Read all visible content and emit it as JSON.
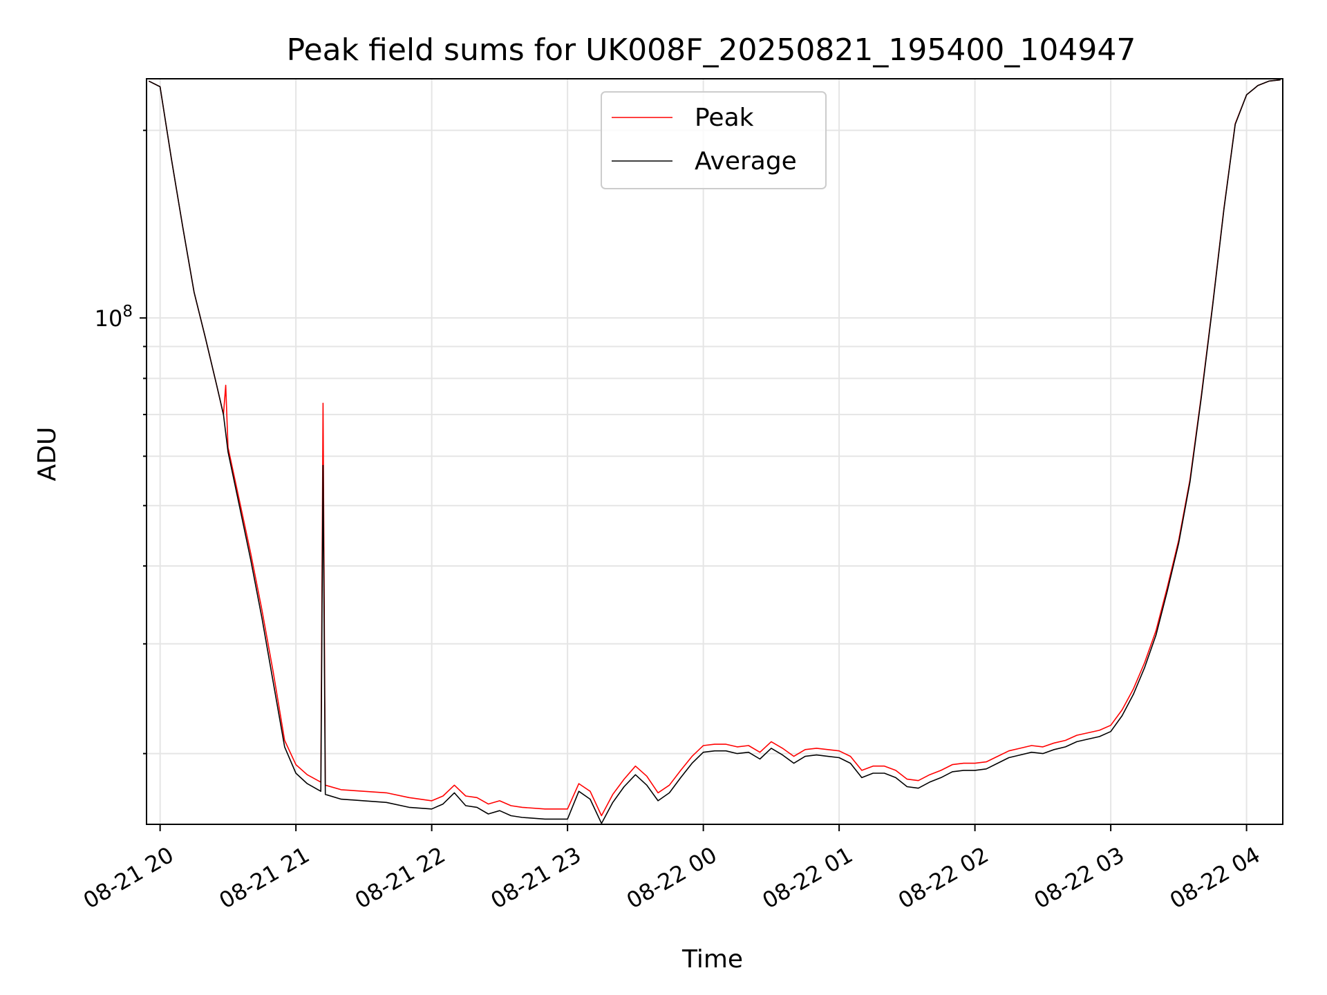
{
  "chart_data": {
    "type": "line",
    "title": "Peak field sums for UK008F_20250821_195400_104947",
    "xlabel": "Time",
    "ylabel": "ADU",
    "yscale": "log",
    "ylim": [
      15400000,
      242000000
    ],
    "xlim": [
      "2025-08-21 19:54",
      "2025-08-22 04:16"
    ],
    "x_ticks": [
      "08-21 20",
      "08-21 21",
      "08-21 22",
      "08-21 23",
      "08-22 00",
      "08-22 01",
      "08-22 02",
      "08-22 03",
      "08-22 04"
    ],
    "y_ticks": [
      {
        "value": 100000000,
        "base": "10",
        "exp": "8"
      }
    ],
    "grid": true,
    "legend_position": "upper center",
    "series": [
      {
        "name": "Peak",
        "color": "#ff0000",
        "points": [
          [
            "2025-08-21 19:55",
            240000000
          ],
          [
            "2025-08-21 20:00",
            235000000
          ],
          [
            "2025-08-21 20:05",
            180000000
          ],
          [
            "2025-08-21 20:10",
            140000000
          ],
          [
            "2025-08-21 20:15",
            110000000
          ],
          [
            "2025-08-21 20:20",
            93000000
          ],
          [
            "2025-08-21 20:25",
            78000000
          ],
          [
            "2025-08-21 20:28",
            70000000
          ],
          [
            "2025-08-21 20:29",
            78000000
          ],
          [
            "2025-08-21 20:30",
            62000000
          ],
          [
            "2025-08-21 20:35",
            51000000
          ],
          [
            "2025-08-21 20:40",
            42000000
          ],
          [
            "2025-08-21 20:45",
            34000000
          ],
          [
            "2025-08-21 20:50",
            27000000
          ],
          [
            "2025-08-21 20:55",
            21000000
          ],
          [
            "2025-08-21 21:00",
            19200000
          ],
          [
            "2025-08-21 21:05",
            18500000
          ],
          [
            "2025-08-21 21:11",
            18000000
          ],
          [
            "2025-08-21 21:12",
            73000000
          ],
          [
            "2025-08-21 21:13",
            17800000
          ],
          [
            "2025-08-21 21:20",
            17500000
          ],
          [
            "2025-08-21 21:30",
            17400000
          ],
          [
            "2025-08-21 21:40",
            17300000
          ],
          [
            "2025-08-21 21:50",
            17000000
          ],
          [
            "2025-08-21 22:00",
            16800000
          ],
          [
            "2025-08-21 22:05",
            17100000
          ],
          [
            "2025-08-21 22:10",
            17800000
          ],
          [
            "2025-08-21 22:15",
            17100000
          ],
          [
            "2025-08-21 22:20",
            17000000
          ],
          [
            "2025-08-21 22:25",
            16600000
          ],
          [
            "2025-08-21 22:30",
            16800000
          ],
          [
            "2025-08-21 22:35",
            16500000
          ],
          [
            "2025-08-21 22:40",
            16400000
          ],
          [
            "2025-08-21 22:50",
            16300000
          ],
          [
            "2025-08-21 23:00",
            16300000
          ],
          [
            "2025-08-21 23:05",
            17900000
          ],
          [
            "2025-08-21 23:10",
            17400000
          ],
          [
            "2025-08-21 23:15",
            15900000
          ],
          [
            "2025-08-21 23:20",
            17200000
          ],
          [
            "2025-08-21 23:25",
            18200000
          ],
          [
            "2025-08-21 23:30",
            19100000
          ],
          [
            "2025-08-21 23:35",
            18400000
          ],
          [
            "2025-08-21 23:40",
            17300000
          ],
          [
            "2025-08-21 23:45",
            17800000
          ],
          [
            "2025-08-21 23:50",
            18800000
          ],
          [
            "2025-08-21 23:55",
            19800000
          ],
          [
            "2025-08-22 00:00",
            20600000
          ],
          [
            "2025-08-22 00:05",
            20700000
          ],
          [
            "2025-08-22 00:10",
            20700000
          ],
          [
            "2025-08-22 00:15",
            20500000
          ],
          [
            "2025-08-22 00:20",
            20600000
          ],
          [
            "2025-08-22 00:25",
            20100000
          ],
          [
            "2025-08-22 00:30",
            20900000
          ],
          [
            "2025-08-22 00:35",
            20400000
          ],
          [
            "2025-08-22 00:40",
            19800000
          ],
          [
            "2025-08-22 00:45",
            20300000
          ],
          [
            "2025-08-22 00:50",
            20400000
          ],
          [
            "2025-08-22 00:55",
            20300000
          ],
          [
            "2025-08-22 01:00",
            20200000
          ],
          [
            "2025-08-22 01:05",
            19800000
          ],
          [
            "2025-08-22 01:10",
            18800000
          ],
          [
            "2025-08-22 01:15",
            19100000
          ],
          [
            "2025-08-22 01:20",
            19100000
          ],
          [
            "2025-08-22 01:25",
            18800000
          ],
          [
            "2025-08-22 01:30",
            18200000
          ],
          [
            "2025-08-22 01:35",
            18100000
          ],
          [
            "2025-08-22 01:40",
            18500000
          ],
          [
            "2025-08-22 01:45",
            18800000
          ],
          [
            "2025-08-22 01:50",
            19200000
          ],
          [
            "2025-08-22 01:55",
            19300000
          ],
          [
            "2025-08-22 02:00",
            19300000
          ],
          [
            "2025-08-22 02:05",
            19400000
          ],
          [
            "2025-08-22 02:10",
            19800000
          ],
          [
            "2025-08-22 02:15",
            20200000
          ],
          [
            "2025-08-22 02:20",
            20400000
          ],
          [
            "2025-08-22 02:25",
            20600000
          ],
          [
            "2025-08-22 02:30",
            20500000
          ],
          [
            "2025-08-22 02:35",
            20800000
          ],
          [
            "2025-08-22 02:40",
            21000000
          ],
          [
            "2025-08-22 02:45",
            21400000
          ],
          [
            "2025-08-22 02:50",
            21600000
          ],
          [
            "2025-08-22 02:55",
            21800000
          ],
          [
            "2025-08-22 03:00",
            22200000
          ],
          [
            "2025-08-22 03:05",
            23500000
          ],
          [
            "2025-08-22 03:10",
            25400000
          ],
          [
            "2025-08-22 03:15",
            28000000
          ],
          [
            "2025-08-22 03:20",
            31500000
          ],
          [
            "2025-08-22 03:25",
            37000000
          ],
          [
            "2025-08-22 03:30",
            44000000
          ],
          [
            "2025-08-22 03:35",
            55000000
          ],
          [
            "2025-08-22 03:40",
            75000000
          ],
          [
            "2025-08-22 03:45",
            105000000
          ],
          [
            "2025-08-22 03:50",
            150000000
          ],
          [
            "2025-08-22 03:55",
            205000000
          ],
          [
            "2025-08-22 04:00",
            228000000
          ],
          [
            "2025-08-22 04:05",
            236000000
          ],
          [
            "2025-08-22 04:10",
            240000000
          ],
          [
            "2025-08-22 04:15",
            241000000
          ]
        ]
      },
      {
        "name": "Average",
        "color": "#000000",
        "points": [
          [
            "2025-08-21 19:55",
            240000000
          ],
          [
            "2025-08-21 20:00",
            235000000
          ],
          [
            "2025-08-21 20:05",
            180000000
          ],
          [
            "2025-08-21 20:10",
            140000000
          ],
          [
            "2025-08-21 20:15",
            110000000
          ],
          [
            "2025-08-21 20:20",
            93000000
          ],
          [
            "2025-08-21 20:25",
            78000000
          ],
          [
            "2025-08-21 20:28",
            70000000
          ],
          [
            "2025-08-21 20:30",
            61000000
          ],
          [
            "2025-08-21 20:35",
            50000000
          ],
          [
            "2025-08-21 20:40",
            41000000
          ],
          [
            "2025-08-21 20:45",
            33000000
          ],
          [
            "2025-08-21 20:50",
            26000000
          ],
          [
            "2025-08-21 20:55",
            20500000
          ],
          [
            "2025-08-21 21:00",
            18600000
          ],
          [
            "2025-08-21 21:05",
            17900000
          ],
          [
            "2025-08-21 21:11",
            17400000
          ],
          [
            "2025-08-21 21:12",
            58000000
          ],
          [
            "2025-08-21 21:13",
            17200000
          ],
          [
            "2025-08-21 21:20",
            16900000
          ],
          [
            "2025-08-21 21:30",
            16800000
          ],
          [
            "2025-08-21 21:40",
            16700000
          ],
          [
            "2025-08-21 21:50",
            16400000
          ],
          [
            "2025-08-21 22:00",
            16300000
          ],
          [
            "2025-08-21 22:05",
            16600000
          ],
          [
            "2025-08-21 22:10",
            17300000
          ],
          [
            "2025-08-21 22:15",
            16500000
          ],
          [
            "2025-08-21 22:20",
            16400000
          ],
          [
            "2025-08-21 22:25",
            16000000
          ],
          [
            "2025-08-21 22:30",
            16200000
          ],
          [
            "2025-08-21 22:35",
            15900000
          ],
          [
            "2025-08-21 22:40",
            15800000
          ],
          [
            "2025-08-21 22:50",
            15700000
          ],
          [
            "2025-08-21 23:00",
            15700000
          ],
          [
            "2025-08-21 23:05",
            17400000
          ],
          [
            "2025-08-21 23:10",
            16900000
          ],
          [
            "2025-08-21 23:15",
            15450000
          ],
          [
            "2025-08-21 23:20",
            16700000
          ],
          [
            "2025-08-21 23:25",
            17700000
          ],
          [
            "2025-08-21 23:30",
            18500000
          ],
          [
            "2025-08-21 23:35",
            17800000
          ],
          [
            "2025-08-21 23:40",
            16800000
          ],
          [
            "2025-08-21 23:45",
            17300000
          ],
          [
            "2025-08-21 23:50",
            18300000
          ],
          [
            "2025-08-21 23:55",
            19300000
          ],
          [
            "2025-08-22 00:00",
            20100000
          ],
          [
            "2025-08-22 00:05",
            20200000
          ],
          [
            "2025-08-22 00:10",
            20200000
          ],
          [
            "2025-08-22 00:15",
            20000000
          ],
          [
            "2025-08-22 00:20",
            20100000
          ],
          [
            "2025-08-22 00:25",
            19600000
          ],
          [
            "2025-08-22 00:30",
            20400000
          ],
          [
            "2025-08-22 00:35",
            19900000
          ],
          [
            "2025-08-22 00:40",
            19300000
          ],
          [
            "2025-08-22 00:45",
            19800000
          ],
          [
            "2025-08-22 00:50",
            19900000
          ],
          [
            "2025-08-22 00:55",
            19800000
          ],
          [
            "2025-08-22 01:00",
            19700000
          ],
          [
            "2025-08-22 01:05",
            19300000
          ],
          [
            "2025-08-22 01:10",
            18300000
          ],
          [
            "2025-08-22 01:15",
            18600000
          ],
          [
            "2025-08-22 01:20",
            18600000
          ],
          [
            "2025-08-22 01:25",
            18300000
          ],
          [
            "2025-08-22 01:30",
            17700000
          ],
          [
            "2025-08-22 01:35",
            17600000
          ],
          [
            "2025-08-22 01:40",
            18000000
          ],
          [
            "2025-08-22 01:45",
            18300000
          ],
          [
            "2025-08-22 01:50",
            18700000
          ],
          [
            "2025-08-22 01:55",
            18800000
          ],
          [
            "2025-08-22 02:00",
            18800000
          ],
          [
            "2025-08-22 02:05",
            18900000
          ],
          [
            "2025-08-22 02:10",
            19300000
          ],
          [
            "2025-08-22 02:15",
            19700000
          ],
          [
            "2025-08-22 02:20",
            19900000
          ],
          [
            "2025-08-22 02:25",
            20100000
          ],
          [
            "2025-08-22 02:30",
            20000000
          ],
          [
            "2025-08-22 02:35",
            20300000
          ],
          [
            "2025-08-22 02:40",
            20500000
          ],
          [
            "2025-08-22 02:45",
            20900000
          ],
          [
            "2025-08-22 02:50",
            21100000
          ],
          [
            "2025-08-22 02:55",
            21300000
          ],
          [
            "2025-08-22 03:00",
            21700000
          ],
          [
            "2025-08-22 03:05",
            23000000
          ],
          [
            "2025-08-22 03:10",
            24900000
          ],
          [
            "2025-08-22 03:15",
            27500000
          ],
          [
            "2025-08-22 03:20",
            31000000
          ],
          [
            "2025-08-22 03:25",
            36500000
          ],
          [
            "2025-08-22 03:30",
            43500000
          ],
          [
            "2025-08-22 03:35",
            54500000
          ],
          [
            "2025-08-22 03:40",
            74500000
          ],
          [
            "2025-08-22 03:45",
            104500000
          ],
          [
            "2025-08-22 03:50",
            149500000
          ],
          [
            "2025-08-22 03:55",
            204500000
          ],
          [
            "2025-08-22 04:00",
            228000000
          ],
          [
            "2025-08-22 04:05",
            236000000
          ],
          [
            "2025-08-22 04:10",
            240000000
          ],
          [
            "2025-08-22 04:15",
            241000000
          ]
        ]
      }
    ]
  }
}
